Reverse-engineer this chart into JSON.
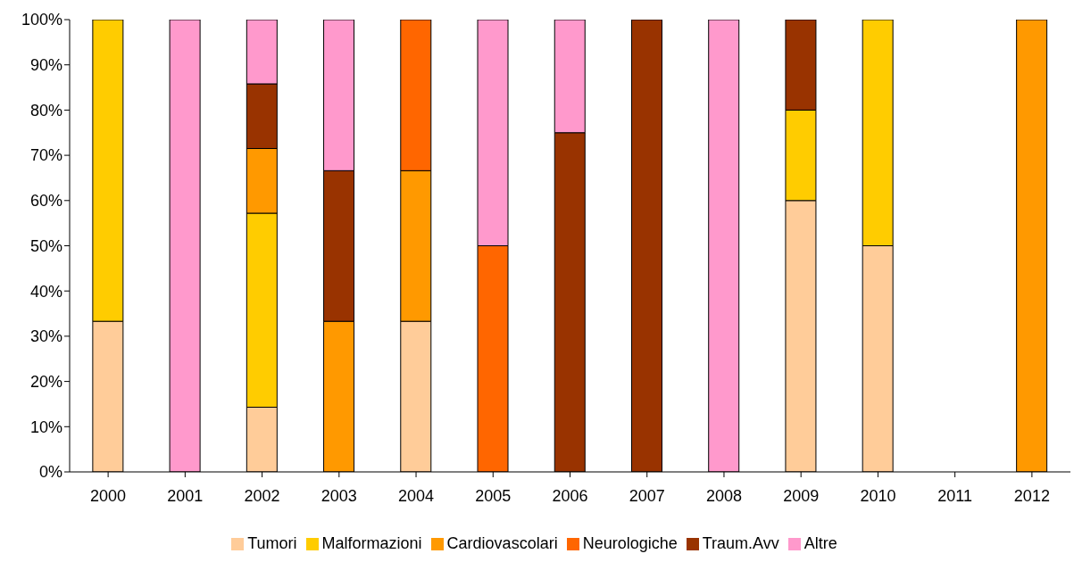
{
  "chart_data": {
    "type": "bar",
    "stacked": true,
    "categories": [
      "2000",
      "2001",
      "2002",
      "2003",
      "2004",
      "2005",
      "2006",
      "2007",
      "2008",
      "2009",
      "2010",
      "2011",
      "2012"
    ],
    "series": [
      {
        "name": "Tumori",
        "color": "#ffcc99",
        "values": [
          33.3,
          null,
          14.3,
          null,
          33.3,
          null,
          null,
          null,
          null,
          60,
          50,
          null,
          null
        ]
      },
      {
        "name": "Malformazioni",
        "color": "#ffcc00",
        "values": [
          66.7,
          null,
          42.9,
          null,
          null,
          null,
          null,
          null,
          null,
          20,
          50,
          null,
          null
        ]
      },
      {
        "name": "Cardiovascolari",
        "color": "#ff9900",
        "values": [
          null,
          null,
          14.3,
          33.3,
          33.3,
          null,
          null,
          null,
          null,
          null,
          null,
          null,
          100
        ]
      },
      {
        "name": "Neurologiche",
        "color": "#ff6600",
        "values": [
          null,
          null,
          null,
          null,
          33.4,
          50,
          null,
          null,
          null,
          null,
          null,
          null,
          null
        ]
      },
      {
        "name": "Traum.Avv",
        "color": "#993300",
        "values": [
          null,
          null,
          14.3,
          33.3,
          null,
          null,
          75,
          100,
          null,
          20,
          null,
          null,
          null
        ]
      },
      {
        "name": "Altre",
        "color": "#ff99cc",
        "values": [
          null,
          100,
          14.2,
          33.4,
          null,
          50,
          25,
          null,
          100,
          null,
          null,
          null,
          null
        ]
      }
    ],
    "ylim": [
      0,
      100
    ],
    "yticks": [
      {
        "value": 0,
        "label": "0%"
      },
      {
        "value": 10,
        "label": "10%"
      },
      {
        "value": 20,
        "label": "20%"
      },
      {
        "value": 30,
        "label": "30%"
      },
      {
        "value": 40,
        "label": "40%"
      },
      {
        "value": 50,
        "label": "50%"
      },
      {
        "value": 60,
        "label": "60%"
      },
      {
        "value": 70,
        "label": "70%"
      },
      {
        "value": 80,
        "label": "80%"
      },
      {
        "value": 90,
        "label": "90%"
      },
      {
        "value": 100,
        "label": "100%"
      }
    ],
    "grid": false,
    "legend": "bottom"
  }
}
